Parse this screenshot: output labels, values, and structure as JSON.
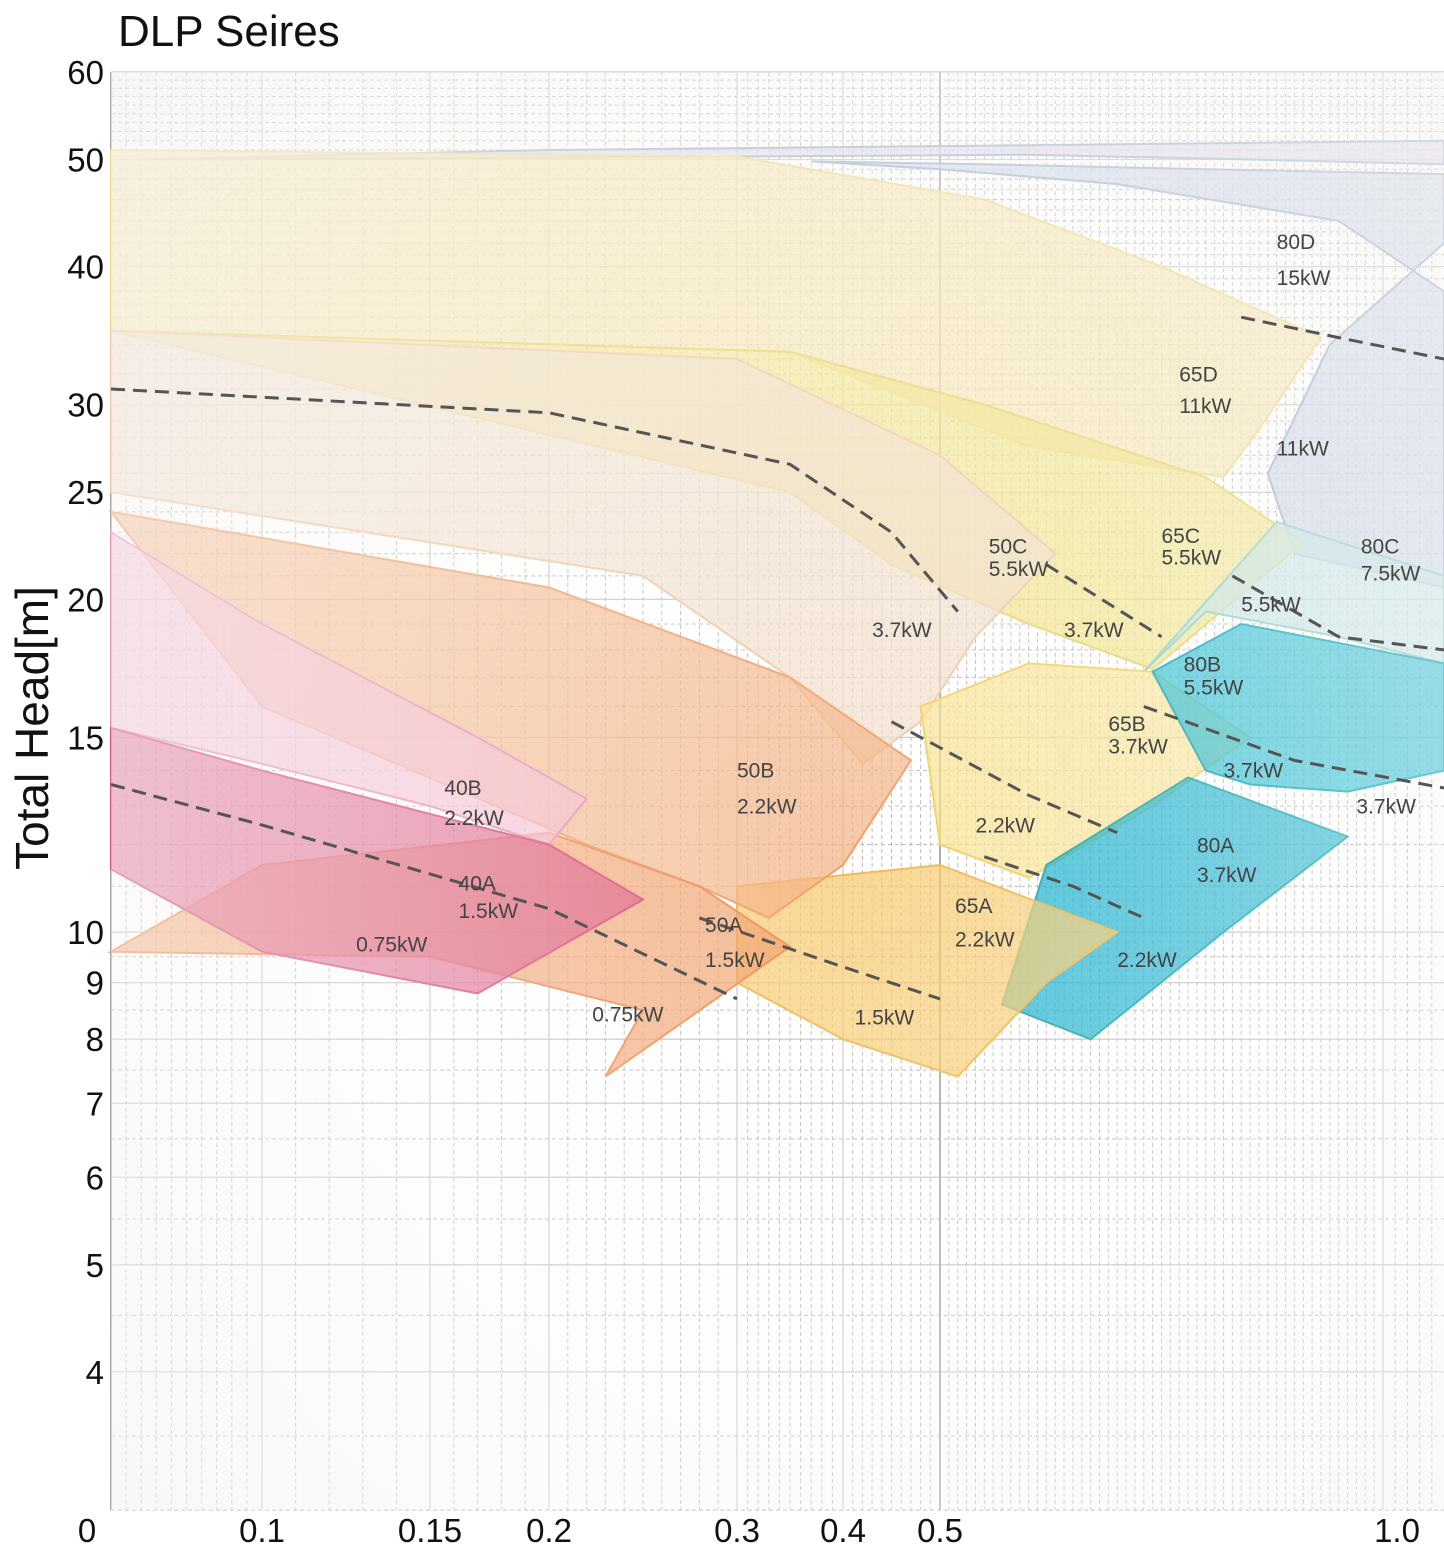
{
  "chart_data": {
    "type": "area",
    "title": "DLP Seires",
    "ylabel": "Total Head[m]",
    "xlabel": "",
    "yscale": "log",
    "ylim": [
      3,
      60
    ],
    "xlim": [
      0,
      1.05
    ],
    "grid": true,
    "y_ticks": [
      60,
      50,
      40,
      30,
      25,
      20,
      15,
      10,
      9,
      8,
      7,
      6,
      5,
      4
    ],
    "x_ticks": [
      "0",
      "0.1",
      "0.15",
      "0.2",
      "0.3",
      "0.4",
      "0.5",
      "1.0"
    ],
    "x_tick_values": [
      0,
      0.1,
      0.15,
      0.2,
      0.3,
      0.4,
      0.5,
      1.0
    ],
    "regions": [
      {
        "id": "80D",
        "color": "#c3cfe2",
        "stroke": "#9db2cc",
        "points": [
          [
            0.37,
            49.8
          ],
          [
            0.55,
            49.5
          ],
          [
            0.8,
            49
          ],
          [
            1.05,
            48.5
          ],
          [
            1.05,
            42
          ],
          [
            0.94,
            34
          ],
          [
            0.87,
            26
          ],
          [
            0.9,
            22
          ],
          [
            1.05,
            20.5
          ],
          [
            1.05,
            38
          ],
          [
            0.95,
            44
          ],
          [
            0.7,
            47.5
          ],
          [
            0.5,
            49
          ]
        ]
      },
      {
        "id": "top-band",
        "color": "#d7d3e6",
        "stroke": "#9fb2ca",
        "points": [
          [
            0.02,
            50
          ],
          [
            0.3,
            50.3
          ],
          [
            0.6,
            50.5
          ],
          [
            0.85,
            50
          ],
          [
            1.05,
            49.5
          ],
          [
            1.05,
            52
          ],
          [
            0.6,
            51.5
          ],
          [
            0.2,
            51
          ]
        ]
      },
      {
        "id": "65D",
        "color": "#f5e1a4",
        "stroke": "#f2d98a",
        "points": [
          [
            0.0,
            51
          ],
          [
            0.3,
            50.3
          ],
          [
            0.55,
            46
          ],
          [
            0.75,
            40
          ],
          [
            0.93,
            34.5
          ],
          [
            0.86,
            28.5
          ],
          [
            0.82,
            25.8
          ],
          [
            0.6,
            27.5
          ],
          [
            0.35,
            33.5
          ],
          [
            0.0,
            35
          ]
        ]
      },
      {
        "id": "65C",
        "color": "#f0e07e",
        "stroke": "#e6d466",
        "points": [
          [
            0.0,
            35
          ],
          [
            0.35,
            33.5
          ],
          [
            0.55,
            30
          ],
          [
            0.8,
            25.8
          ],
          [
            0.91,
            22.5
          ],
          [
            0.74,
            17.3
          ],
          [
            0.6,
            19
          ],
          [
            0.45,
            21.5
          ],
          [
            0.35,
            25
          ]
        ]
      },
      {
        "id": "50C",
        "color": "#f1dcc7",
        "stroke": "#eec9a6",
        "points": [
          [
            0.0,
            35
          ],
          [
            0.3,
            33
          ],
          [
            0.5,
            27
          ],
          [
            0.63,
            22
          ],
          [
            0.54,
            18.5
          ],
          [
            0.48,
            15.5
          ],
          [
            0.42,
            14.2
          ],
          [
            0.35,
            17
          ],
          [
            0.25,
            21
          ],
          [
            0.0,
            25
          ]
        ]
      },
      {
        "id": "80C",
        "color": "#bfe0e3",
        "stroke": "#8fd0c6",
        "points": [
          [
            0.73,
            17.2
          ],
          [
            0.88,
            23.5
          ],
          [
            1.05,
            21
          ],
          [
            1.05,
            17.5
          ],
          [
            0.95,
            18.5
          ],
          [
            0.8,
            19.5
          ]
        ]
      },
      {
        "id": "65B",
        "color": "#f7e08c",
        "stroke": "#f2cf5c",
        "points": [
          [
            0.48,
            16
          ],
          [
            0.6,
            17.5
          ],
          [
            0.74,
            17.2
          ],
          [
            0.85,
            15
          ],
          [
            0.74,
            13
          ],
          [
            0.6,
            11.2
          ],
          [
            0.5,
            12
          ]
        ]
      },
      {
        "id": "80B",
        "color": "#12b6cc",
        "stroke": "#0fa7ba",
        "points": [
          [
            0.74,
            17.2
          ],
          [
            0.84,
            19
          ],
          [
            1.05,
            17.5
          ],
          [
            1.05,
            14
          ],
          [
            0.96,
            13.4
          ],
          [
            0.85,
            13.6
          ],
          [
            0.8,
            14
          ]
        ]
      },
      {
        "id": "80A",
        "color": "#04a9c9",
        "stroke": "#1ea7a8",
        "points": [
          [
            0.62,
            11.5
          ],
          [
            0.78,
            13.8
          ],
          [
            0.96,
            12.2
          ],
          [
            0.82,
            10
          ],
          [
            0.67,
            8
          ],
          [
            0.57,
            8.6
          ]
        ]
      },
      {
        "id": "65A",
        "color": "#f6c96b",
        "stroke": "#f0b94f",
        "points": [
          [
            0.3,
            11
          ],
          [
            0.5,
            11.5
          ],
          [
            0.7,
            10
          ],
          [
            0.62,
            9
          ],
          [
            0.52,
            7.4
          ],
          [
            0.4,
            8
          ],
          [
            0.3,
            9
          ]
        ]
      },
      {
        "id": "50B",
        "color": "#f3b384",
        "stroke": "#f1a06a",
        "points": [
          [
            0.0,
            24
          ],
          [
            0.2,
            20.5
          ],
          [
            0.35,
            17
          ],
          [
            0.47,
            14.3
          ],
          [
            0.4,
            11.5
          ],
          [
            0.33,
            10.3
          ],
          [
            0.28,
            11
          ],
          [
            0.22,
            12
          ],
          [
            0.1,
            16
          ]
        ]
      },
      {
        "id": "50A",
        "color": "#f0a06a",
        "stroke": "#ee9155",
        "points": [
          [
            0.0,
            9.6
          ],
          [
            0.15,
            9.5
          ],
          [
            0.25,
            8.5
          ],
          [
            0.23,
            7.4
          ],
          [
            0.35,
            9.7
          ],
          [
            0.28,
            11
          ],
          [
            0.2,
            12.3
          ],
          [
            0.1,
            11.5
          ]
        ]
      },
      {
        "id": "40B",
        "color": "#f3bcd0",
        "stroke": "#ea97b6",
        "points": [
          [
            0.0,
            23
          ],
          [
            0.1,
            19
          ],
          [
            0.17,
            15
          ],
          [
            0.22,
            13.2
          ],
          [
            0.2,
            12
          ],
          [
            0.15,
            13
          ],
          [
            0.1,
            14.2
          ],
          [
            0.0,
            15.3
          ]
        ]
      },
      {
        "id": "40A",
        "color": "#dc5f88",
        "stroke": "#d9557e",
        "points": [
          [
            0.0,
            15.3
          ],
          [
            0.1,
            14
          ],
          [
            0.2,
            12
          ],
          [
            0.25,
            10.7
          ],
          [
            0.17,
            8.8
          ],
          [
            0.1,
            9.6
          ],
          [
            0.0,
            11.4
          ]
        ]
      }
    ],
    "dashed_lines": [
      [
        [
          0.0,
          31
        ],
        [
          0.2,
          29.5
        ],
        [
          0.35,
          26.5
        ],
        [
          0.45,
          23
        ],
        [
          0.52,
          19.5
        ]
      ],
      [
        [
          0.62,
          21.5
        ],
        [
          0.75,
          18.5
        ]
      ],
      [
        [
          0.83,
          21
        ],
        [
          0.95,
          18.5
        ],
        [
          1.05,
          18
        ]
      ],
      [
        [
          0.84,
          36
        ],
        [
          0.95,
          34.5
        ],
        [
          1.05,
          33
        ]
      ],
      [
        [
          0.45,
          15.5
        ],
        [
          0.6,
          13.3
        ],
        [
          0.7,
          12.3
        ]
      ],
      [
        [
          0.73,
          16
        ],
        [
          0.9,
          14.3
        ],
        [
          1.05,
          13.5
        ]
      ],
      [
        [
          0.55,
          11.7
        ],
        [
          0.65,
          11
        ],
        [
          0.73,
          10.3
        ]
      ],
      [
        [
          0.28,
          10.3
        ],
        [
          0.4,
          9.3
        ],
        [
          0.5,
          8.7
        ]
      ],
      [
        [
          0.0,
          13.6
        ],
        [
          0.1,
          12.5
        ],
        [
          0.2,
          10.5
        ],
        [
          0.3,
          8.7
        ]
      ]
    ],
    "annotations": [
      {
        "text": "80D",
        "x": 0.88,
        "y": 41.5
      },
      {
        "text": "15kW",
        "x": 0.88,
        "y": 38.5
      },
      {
        "text": "65D",
        "x": 0.77,
        "y": 31.5
      },
      {
        "text": "11kW",
        "x": 0.77,
        "y": 29.5
      },
      {
        "text": "11kW",
        "x": 0.88,
        "y": 27
      },
      {
        "text": "50C",
        "x": 0.555,
        "y": 22
      },
      {
        "text": "5.5kW",
        "x": 0.555,
        "y": 21
      },
      {
        "text": "65C",
        "x": 0.75,
        "y": 22.5
      },
      {
        "text": "5.5kW",
        "x": 0.75,
        "y": 21.5
      },
      {
        "text": "80C",
        "x": 0.975,
        "y": 22
      },
      {
        "text": "7.5kW",
        "x": 0.975,
        "y": 20.8
      },
      {
        "text": "3.7kW",
        "x": 0.43,
        "y": 18.5
      },
      {
        "text": "3.7kW",
        "x": 0.64,
        "y": 18.5
      },
      {
        "text": "5.5kW",
        "x": 0.84,
        "y": 19.5
      },
      {
        "text": "80B",
        "x": 0.775,
        "y": 17.2
      },
      {
        "text": "5.5kW",
        "x": 0.775,
        "y": 16.4
      },
      {
        "text": "65B",
        "x": 0.69,
        "y": 15.2
      },
      {
        "text": "3.7kW",
        "x": 0.69,
        "y": 14.5
      },
      {
        "text": "3.7kW",
        "x": 0.82,
        "y": 13.8
      },
      {
        "text": "3.7kW",
        "x": 0.97,
        "y": 12.8
      },
      {
        "text": "40B",
        "x": 0.156,
        "y": 13.3
      },
      {
        "text": "2.2kW",
        "x": 0.156,
        "y": 12.5
      },
      {
        "text": "50B",
        "x": 0.3,
        "y": 13.8
      },
      {
        "text": "2.2kW",
        "x": 0.3,
        "y": 12.8
      },
      {
        "text": "2.2kW",
        "x": 0.54,
        "y": 12.3
      },
      {
        "text": "80A",
        "x": 0.79,
        "y": 11.8
      },
      {
        "text": "3.7kW",
        "x": 0.79,
        "y": 11.1
      },
      {
        "text": "40A",
        "x": 0.162,
        "y": 10.9
      },
      {
        "text": "1.5kW",
        "x": 0.162,
        "y": 10.3
      },
      {
        "text": "0.75kW",
        "x": 0.128,
        "y": 9.6
      },
      {
        "text": "50A",
        "x": 0.283,
        "y": 10
      },
      {
        "text": "1.5kW",
        "x": 0.283,
        "y": 9.3
      },
      {
        "text": "65A",
        "x": 0.517,
        "y": 10.4
      },
      {
        "text": "2.2kW",
        "x": 0.517,
        "y": 9.7
      },
      {
        "text": "2.2kW",
        "x": 0.7,
        "y": 9.3
      },
      {
        "text": "0.75kW",
        "x": 0.223,
        "y": 8.3
      },
      {
        "text": "1.5kW",
        "x": 0.412,
        "y": 8.25
      }
    ]
  }
}
